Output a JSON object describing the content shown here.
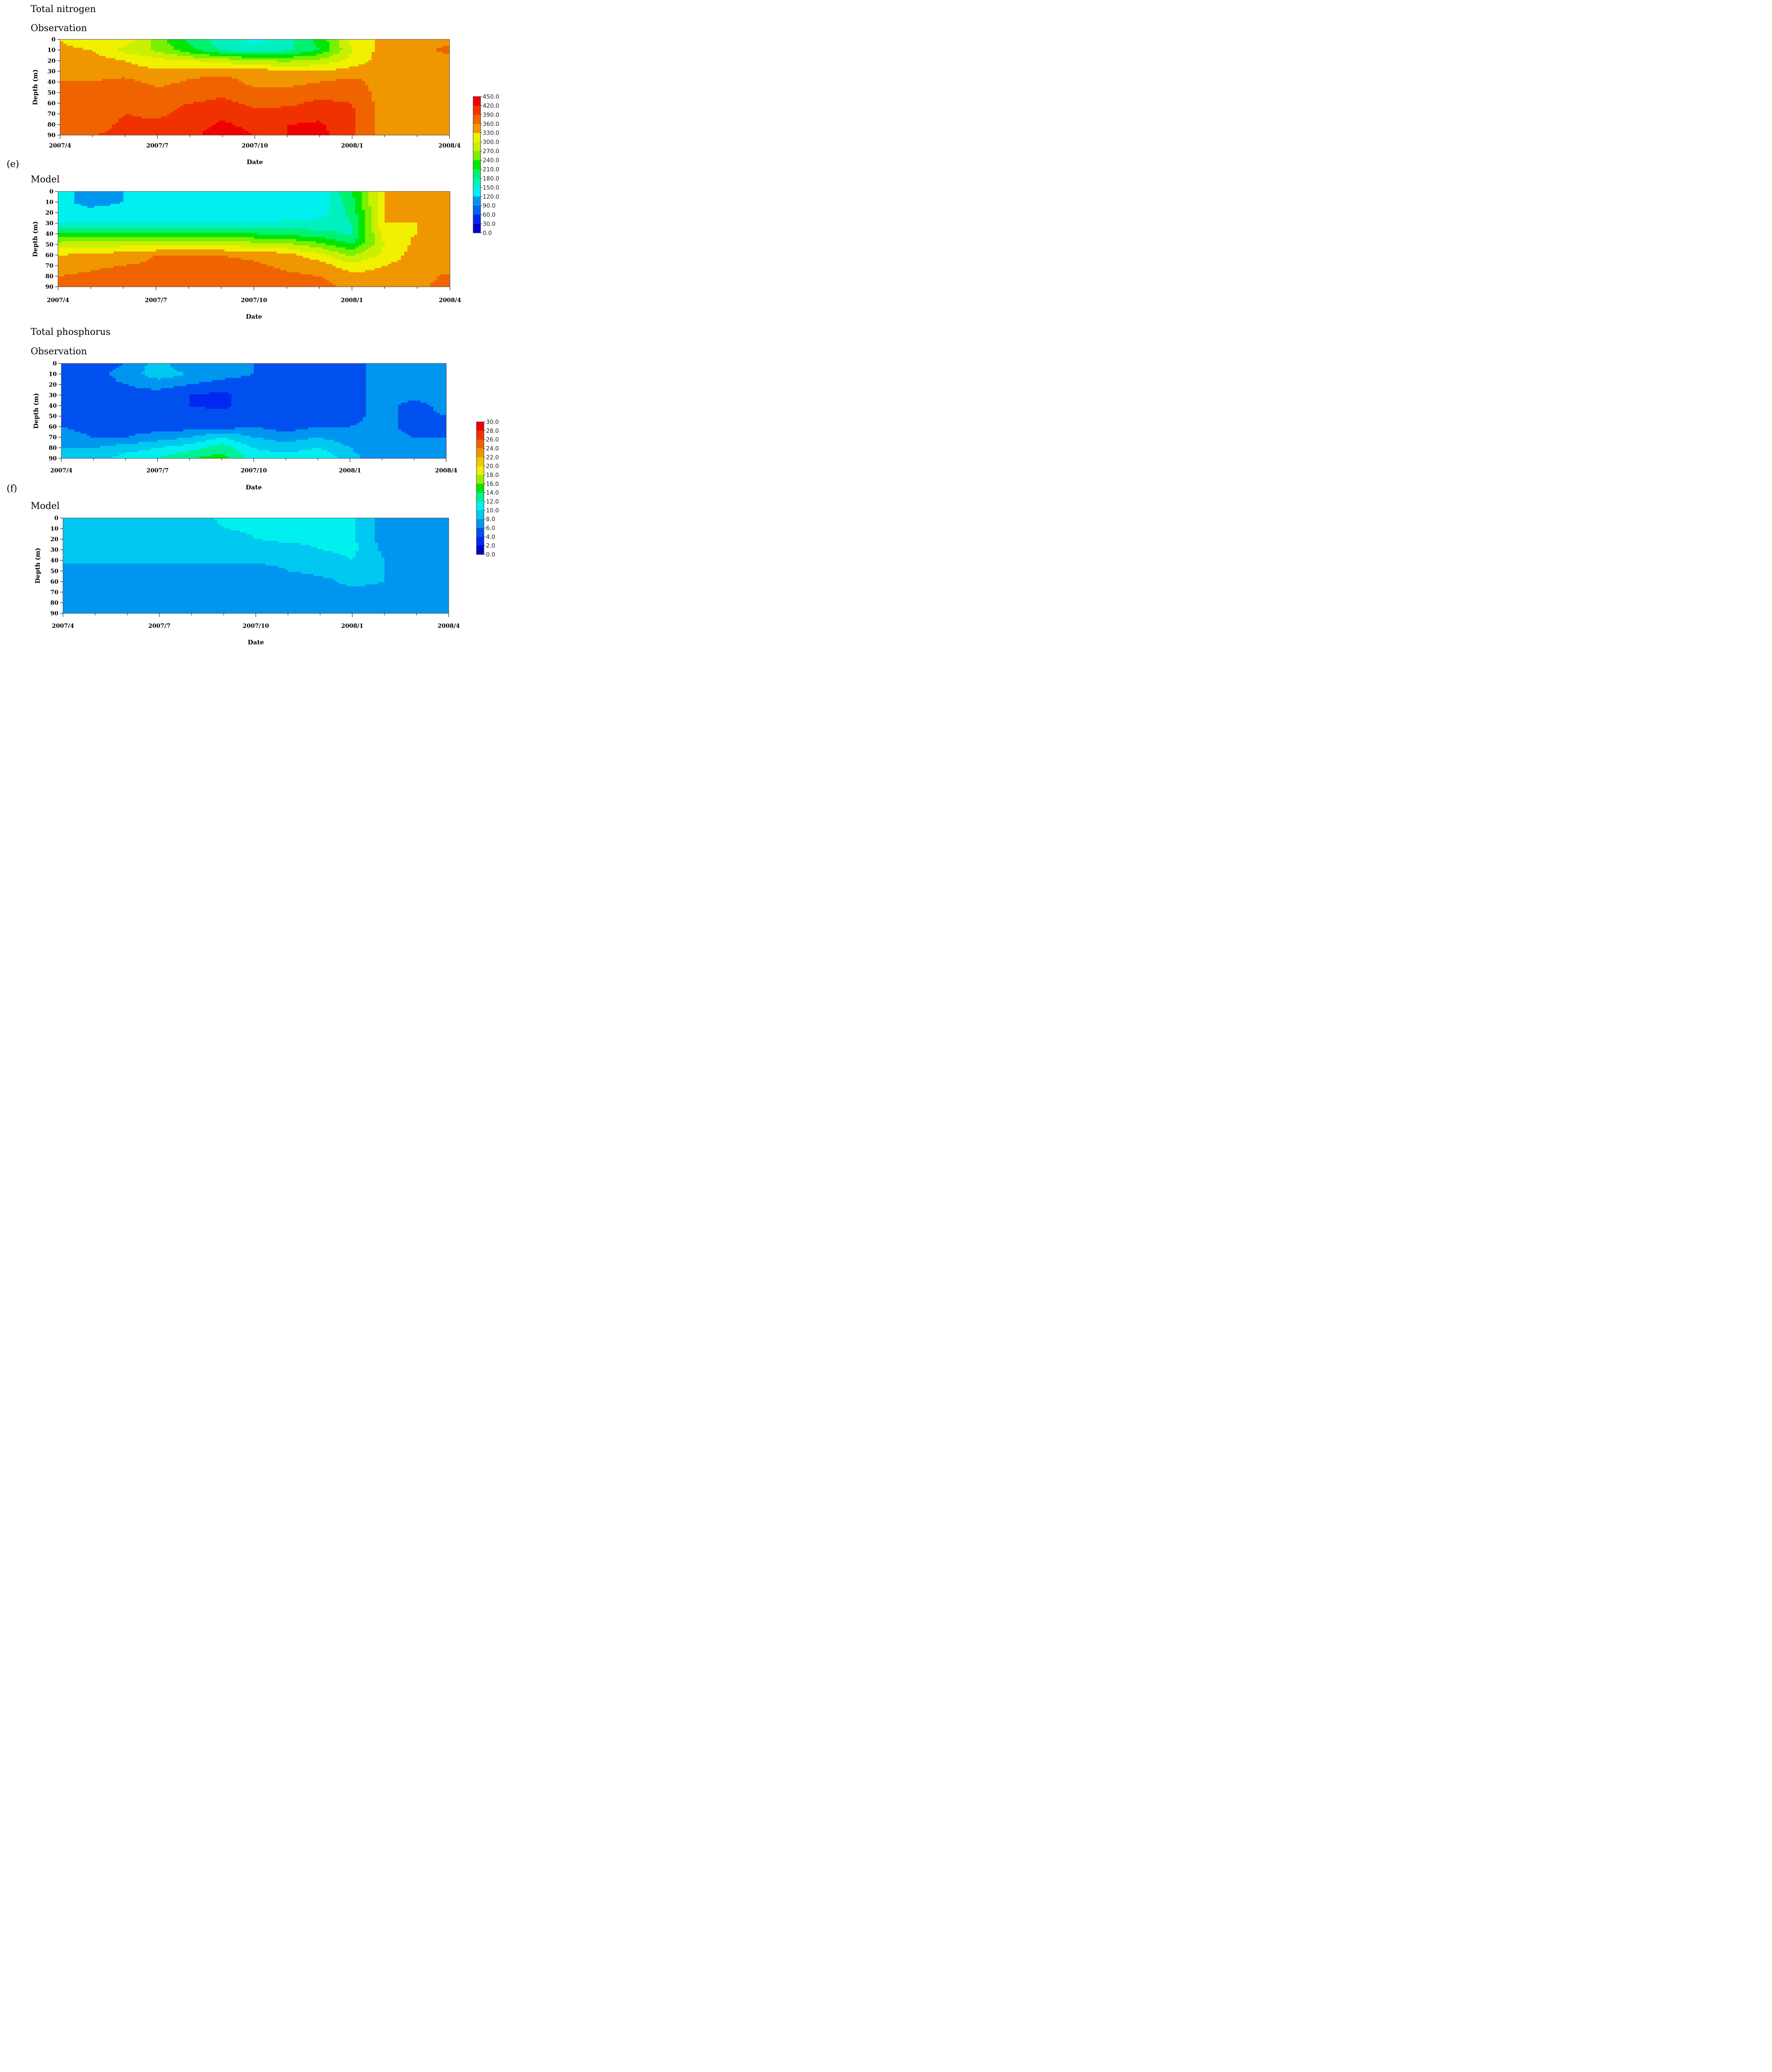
{
  "figure": {
    "sections": [
      {
        "title": "Total nitrogen",
        "label": "(e)"
      },
      {
        "title": "Total phosphorus",
        "label": "(f)"
      }
    ],
    "panel_titles": [
      "Observation",
      "Model",
      "Observation",
      "Model"
    ],
    "colors": {
      "nitrogen": [
        "#0000c8",
        "#0028f0",
        "#0064f0",
        "#0096f0",
        "#00c8f0",
        "#00f0f0",
        "#00f0c0",
        "#00f070",
        "#00e600",
        "#78f000",
        "#c8f000",
        "#f0f000",
        "#f0c800",
        "#f09600",
        "#f06400",
        "#f03200",
        "#f00000"
      ],
      "phosphorus": [
        "#0000c8",
        "#0028f0",
        "#0050f0",
        "#0096f0",
        "#00c8f0",
        "#00f0f0",
        "#00f096",
        "#00e600",
        "#96f000",
        "#f0f000",
        "#f0c800",
        "#f09600",
        "#f06400",
        "#f03200",
        "#f00000"
      ]
    }
  },
  "chart_data": [
    {
      "type": "heatmap",
      "title": "Observation",
      "section": "Total nitrogen",
      "xlabel": "Date",
      "ylabel": "Depth (m)",
      "x_ticks": [
        "2007/4",
        "2007/7",
        "2007/10",
        "2008/1",
        "2008/4"
      ],
      "y_ticks": [
        "0",
        "10",
        "20",
        "30",
        "40",
        "50",
        "60",
        "70",
        "80",
        "90"
      ],
      "ylim": [
        0,
        90
      ],
      "x_months": [
        0,
        1,
        2,
        3,
        4,
        5,
        6,
        7,
        8,
        9,
        10,
        11,
        12
      ],
      "depths": [
        0,
        10,
        20,
        30,
        40,
        50,
        60,
        70,
        80,
        90
      ],
      "values": [
        [
          330,
          300,
          320,
          255,
          200,
          165,
          140,
          170,
          220,
          310,
          340,
          345,
          345
        ],
        [
          340,
          330,
          290,
          265,
          220,
          175,
          160,
          175,
          210,
          300,
          345,
          350,
          370
        ],
        [
          345,
          345,
          330,
          310,
          300,
          290,
          270,
          265,
          280,
          310,
          345,
          345,
          345
        ],
        [
          355,
          350,
          345,
          335,
          345,
          345,
          350,
          330,
          330,
          345,
          345,
          345,
          345
        ],
        [
          360,
          360,
          370,
          350,
          365,
          380,
          345,
          350,
          360,
          370,
          345,
          345,
          345
        ],
        [
          360,
          360,
          380,
          370,
          380,
          385,
          375,
          370,
          380,
          380,
          345,
          345,
          345
        ],
        [
          360,
          360,
          385,
          380,
          390,
          395,
          385,
          385,
          395,
          390,
          345,
          345,
          345
        ],
        [
          370,
          370,
          390,
          385,
          400,
          410,
          395,
          400,
          410,
          395,
          345,
          345,
          345
        ],
        [
          380,
          380,
          395,
          395,
          405,
          425,
          410,
          420,
          425,
          395,
          345,
          345,
          345
        ],
        [
          390,
          390,
          395,
          400,
          410,
          440,
          420,
          420,
          430,
          395,
          345,
          345,
          345
        ]
      ],
      "legend": {
        "min": 0.0,
        "max": 450.0,
        "step": 30.0,
        "labels": [
          "450.0",
          "420.0",
          "390.0",
          "360.0",
          "330.0",
          "300.0",
          "270.0",
          "240.0",
          "210.0",
          "180.0",
          "150.0",
          "120.0",
          "90.0",
          "60.0",
          "30.0",
          "0.0"
        ]
      }
    },
    {
      "type": "heatmap",
      "title": "Model",
      "section": "Total nitrogen",
      "xlabel": "Date",
      "ylabel": "Depth (m)",
      "x_ticks": [
        "2007/4",
        "2007/7",
        "2007/10",
        "2008/1",
        "2008/4"
      ],
      "y_ticks": [
        "0",
        "10",
        "20",
        "30",
        "40",
        "50",
        "60",
        "70",
        "80",
        "90"
      ],
      "ylim": [
        0,
        90
      ],
      "x_months": [
        0,
        1,
        2,
        3,
        4,
        5,
        6,
        7,
        8,
        9,
        10,
        11,
        12
      ],
      "depths": [
        0,
        10,
        20,
        30,
        40,
        50,
        60,
        70,
        80,
        90
      ],
      "values": [
        [
          130,
          110,
          120,
          125,
          130,
          130,
          130,
          130,
          130,
          210,
          330,
          330,
          330
        ],
        [
          130,
          110,
          120,
          125,
          130,
          130,
          130,
          130,
          130,
          200,
          330,
          330,
          330
        ],
        [
          130,
          130,
          130,
          130,
          130,
          130,
          130,
          130,
          135,
          190,
          330,
          330,
          330
        ],
        [
          150,
          150,
          150,
          150,
          150,
          150,
          150,
          155,
          160,
          180,
          330,
          330,
          330
        ],
        [
          210,
          220,
          220,
          220,
          220,
          220,
          210,
          200,
          190,
          175,
          320,
          330,
          330
        ],
        [
          285,
          290,
          290,
          290,
          290,
          290,
          285,
          275,
          250,
          210,
          300,
          340,
          340
        ],
        [
          330,
          335,
          345,
          360,
          360,
          360,
          355,
          340,
          310,
          265,
          310,
          345,
          345
        ],
        [
          345,
          355,
          360,
          365,
          365,
          365,
          365,
          355,
          345,
          310,
          330,
          345,
          345
        ],
        [
          360,
          365,
          370,
          375,
          375,
          375,
          370,
          365,
          360,
          340,
          340,
          350,
          365
        ],
        [
          370,
          375,
          380,
          380,
          380,
          380,
          380,
          375,
          370,
          350,
          345,
          355,
          370
        ]
      ],
      "legend": {
        "min": 0.0,
        "max": 450.0,
        "step": 30.0,
        "labels": [
          "450.0",
          "420.0",
          "390.0",
          "360.0",
          "330.0",
          "300.0",
          "270.0",
          "240.0",
          "210.0",
          "180.0",
          "150.0",
          "120.0",
          "90.0",
          "60.0",
          "30.0",
          "0.0"
        ]
      }
    },
    {
      "type": "heatmap",
      "title": "Observation",
      "section": "Total phosphorus",
      "xlabel": "Date",
      "ylabel": "Depth (m)",
      "x_ticks": [
        "2007/4",
        "2007/7",
        "2007/10",
        "2008/1",
        "2008/4"
      ],
      "y_ticks": [
        "0",
        "10",
        "20",
        "30",
        "40",
        "50",
        "60",
        "70",
        "80",
        "90"
      ],
      "ylim": [
        0,
        90
      ],
      "x_months": [
        0,
        1,
        2,
        3,
        4,
        5,
        6,
        7,
        8,
        9,
        10,
        11,
        12
      ],
      "depths": [
        0,
        10,
        20,
        30,
        40,
        50,
        60,
        70,
        80,
        90
      ],
      "values": [
        [
          4,
          5,
          6,
          9,
          6,
          6,
          6,
          5,
          5,
          5,
          7,
          7,
          7
        ],
        [
          5,
          5,
          7,
          9,
          8,
          7,
          6,
          6,
          5,
          5,
          7,
          7,
          7
        ],
        [
          5,
          5,
          6,
          7,
          6,
          5,
          5,
          5,
          5,
          5,
          7,
          7,
          7
        ],
        [
          5,
          5,
          5,
          5,
          4,
          3.5,
          5,
          5,
          5,
          5,
          7,
          7,
          7
        ],
        [
          5,
          5,
          5,
          5,
          4,
          3.5,
          5,
          4,
          5,
          5,
          7,
          5,
          7
        ],
        [
          5,
          5,
          5,
          5,
          5,
          5,
          5,
          5,
          5,
          5,
          7,
          5,
          6
        ],
        [
          6,
          5,
          5,
          5,
          5,
          5,
          6,
          5,
          6,
          6,
          7,
          5,
          6
        ],
        [
          7,
          6,
          6,
          7,
          8,
          10,
          8,
          7,
          8,
          7,
          7,
          6,
          6
        ],
        [
          8,
          8,
          9,
          10,
          11,
          13,
          10,
          9,
          10,
          8,
          6,
          6,
          6
        ],
        [
          9,
          9,
          11,
          12,
          14,
          15,
          11,
          11,
          12,
          9,
          6,
          6,
          6
        ]
      ],
      "legend": {
        "min": 0.0,
        "max": 30.0,
        "step": 2.0,
        "labels": [
          "30.0",
          "28.0",
          "26.0",
          "24.0",
          "22.0",
          "20.0",
          "18.0",
          "16.0",
          "14.0",
          "12.0",
          "10.0",
          "8.0",
          "6.0",
          "4.0",
          "2.0",
          "0.0"
        ]
      }
    },
    {
      "type": "heatmap",
      "title": "Model",
      "section": "Total phosphorus",
      "xlabel": "Date",
      "ylabel": "Depth (m)",
      "x_ticks": [
        "2007/4",
        "2007/7",
        "2007/10",
        "2008/1",
        "2008/4"
      ],
      "y_ticks": [
        "0",
        "10",
        "20",
        "30",
        "40",
        "50",
        "60",
        "70",
        "80",
        "90"
      ],
      "ylim": [
        0,
        90
      ],
      "x_months": [
        0,
        1,
        2,
        3,
        4,
        5,
        6,
        7,
        8,
        9,
        10,
        11,
        12
      ],
      "depths": [
        0,
        10,
        20,
        30,
        40,
        50,
        60,
        70,
        80,
        90
      ],
      "values": [
        [
          8.5,
          8.5,
          8.5,
          8.5,
          9,
          10.5,
          10.5,
          10.5,
          10.5,
          10.5,
          7,
          7,
          7
        ],
        [
          8.5,
          8.5,
          8.5,
          8.5,
          8.5,
          10,
          10.5,
          10.5,
          10.5,
          10.5,
          7,
          7,
          7
        ],
        [
          8.5,
          8.5,
          8.5,
          8.5,
          8.5,
          8.5,
          10,
          10.5,
          10.5,
          10.5,
          7,
          7,
          7
        ],
        [
          8.5,
          8.5,
          8.5,
          8.5,
          8.5,
          8.5,
          8.5,
          9,
          10,
          10.5,
          7.5,
          7,
          7
        ],
        [
          8.5,
          8.5,
          8.5,
          8.5,
          8.5,
          8.5,
          8.5,
          8.5,
          9,
          10,
          8,
          7,
          7
        ],
        [
          7,
          7,
          7,
          7,
          7,
          7,
          7,
          8,
          8.5,
          8.5,
          8,
          7,
          7
        ],
        [
          7,
          7,
          7,
          7,
          7,
          7,
          7,
          7,
          7.5,
          8.5,
          8,
          7,
          7
        ],
        [
          7,
          7,
          7,
          7,
          7,
          7,
          7,
          7,
          7,
          7.5,
          7.5,
          7,
          7
        ],
        [
          7,
          7,
          7,
          7,
          7,
          7,
          7,
          7,
          7,
          7,
          7,
          7,
          7
        ],
        [
          7,
          7,
          7,
          7,
          7,
          7,
          7,
          7,
          7,
          7,
          7,
          7,
          7
        ]
      ],
      "legend": {
        "min": 0.0,
        "max": 30.0,
        "step": 2.0,
        "labels": [
          "30.0",
          "28.0",
          "26.0",
          "24.0",
          "22.0",
          "20.0",
          "18.0",
          "16.0",
          "14.0",
          "12.0",
          "10.0",
          "8.0",
          "6.0",
          "4.0",
          "2.0",
          "0.0"
        ]
      }
    }
  ]
}
